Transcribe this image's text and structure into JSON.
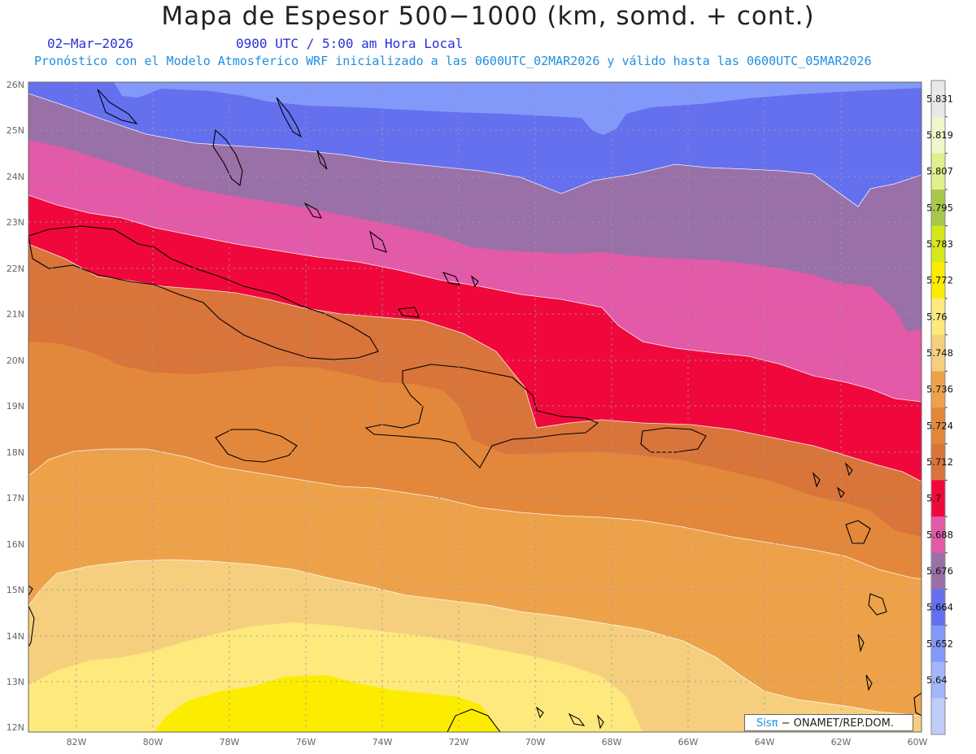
{
  "header": {
    "title": "Mapa de Espesor 500−1000 (km, somd. + cont.)",
    "date": "02−Mar−2026",
    "time": "0900 UTC / 5:00 am Hora Local",
    "model_line": "Pronóstico con el Modelo Atmosferico WRF inicializado a las 0600UTC_02MAR2026 y válido hasta las  0600UTC_05MAR2026"
  },
  "axes": {
    "lon_labels": [
      "82W",
      "80W",
      "78W",
      "76W",
      "74W",
      "72W",
      "70W",
      "68W",
      "66W",
      "64W",
      "62W",
      "60W"
    ],
    "lat_labels": [
      "26N",
      "25N",
      "24N",
      "23N",
      "22N",
      "21N",
      "20N",
      "19N",
      "18N",
      "17N",
      "16N",
      "15N",
      "14N",
      "13N",
      "12N"
    ],
    "lon_range": [
      -83.2,
      -60.0
    ],
    "lat_range": [
      11.9,
      26.05
    ],
    "grid": true
  },
  "legend": {
    "levels": [
      "5.831",
      "5.819",
      "5.807",
      "5.795",
      "5.783",
      "5.772",
      "5.76",
      "5.748",
      "5.736",
      "5.724",
      "5.712",
      "5.7",
      "5.688",
      "5.676",
      "5.664",
      "5.652",
      "5.64"
    ],
    "colors": [
      "#e8e8e8",
      "#f2f6cc",
      "#e0f08c",
      "#a8c84c",
      "#d6e81a",
      "#fcec00",
      "#fee97c",
      "#f5cf7e",
      "#eda24a",
      "#e3883a",
      "#d9743a",
      "#f0083c",
      "#e25aa8",
      "#9a70a8",
      "#6470ee",
      "#8299fa",
      "#a4b6fa",
      "#c0ccf8"
    ]
  },
  "thickness_bands": [
    {
      "value": "5.664",
      "color": "#8299fa"
    },
    {
      "value": "5.676",
      "color": "#6470ee"
    },
    {
      "value": "5.688",
      "color": "#9a70a8"
    },
    {
      "value": "5.7",
      "color": "#e25aa8"
    },
    {
      "value": "5.712",
      "color": "#f0083c"
    },
    {
      "value": "5.724",
      "color": "#d9743a"
    },
    {
      "value": "5.736",
      "color": "#e3883a"
    },
    {
      "value": "5.748",
      "color": "#eda24a"
    },
    {
      "value": "5.76",
      "color": "#f5cf7e"
    },
    {
      "value": "5.772",
      "color": "#fee97c"
    },
    {
      "value": "5.783",
      "color": "#fcec00"
    }
  ],
  "credit": {
    "brand": "Sisπ",
    "text": " − ONAMET/REP.DOM."
  }
}
